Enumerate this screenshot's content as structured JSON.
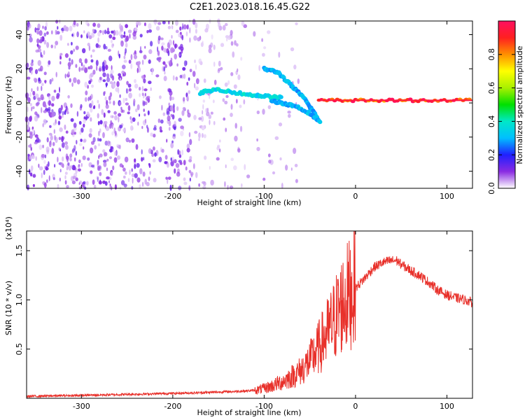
{
  "title": "C2E1.2023.018.16.45.G22",
  "chart_data": [
    {
      "type": "heatmap",
      "xlabel": "Height of straight line (km)",
      "ylabel": "Frequency (Hz)",
      "xlim": [
        -360,
        128
      ],
      "ylim": [
        -50,
        48
      ],
      "x_ticks": [
        -300,
        -200,
        -100,
        0,
        100
      ],
      "y_ticks": [
        40,
        20,
        0,
        -20,
        -40
      ],
      "colorbar": {
        "label": "Normalized spectral amplitude",
        "range": [
          0,
          1
        ],
        "ticks": [
          "0.0",
          "0.2",
          "0.4",
          "0.6",
          "0.8"
        ]
      },
      "features": [
        {
          "x": [
            -170,
            -150,
            -120,
            -100,
            -80
          ],
          "y": [
            6,
            8,
            5,
            4,
            3
          ],
          "amplitude": 0.35
        },
        {
          "x": [
            -100,
            -85,
            -70,
            -55,
            -40
          ],
          "y": [
            20,
            18,
            10,
            2,
            -10
          ],
          "amplitude": 0.3
        },
        {
          "x": [
            -92,
            -80,
            -65,
            -50,
            -38
          ],
          "y": [
            1,
            0,
            -2,
            -6,
            -12
          ],
          "amplitude": 0.3
        },
        {
          "x": [
            -40,
            0,
            40,
            80,
            128
          ],
          "y": [
            1.5,
            1.5,
            1.5,
            1.5,
            1.5
          ],
          "amplitude": 0.9
        }
      ]
    },
    {
      "type": "line",
      "xlabel": "Height of straight line (km)",
      "ylabel": "SNR (10 * v/v)",
      "scale_label": "(x10⁴)",
      "xlim": [
        -360,
        128
      ],
      "ylim": [
        0,
        1.7
      ],
      "x_ticks": [
        -300,
        -200,
        -100,
        0,
        100
      ],
      "y_ticks": [
        "0.5",
        "1.0",
        "1.5"
      ],
      "color": "#e8302a",
      "series": [
        {
          "x": [
            -360,
            -300,
            -250,
            -200,
            -160,
            -130,
            -110,
            -100,
            -90,
            -80,
            -70,
            -60,
            -55,
            -50,
            -45,
            -40,
            -35,
            -30,
            -25,
            -20,
            -15,
            -10,
            -5,
            0,
            10,
            20,
            30,
            40,
            45,
            50,
            60,
            70,
            80,
            90,
            100,
            110,
            120,
            128
          ],
          "y": [
            0.02,
            0.03,
            0.04,
            0.05,
            0.06,
            0.07,
            0.08,
            0.1,
            0.13,
            0.17,
            0.22,
            0.28,
            0.33,
            0.38,
            0.45,
            0.52,
            0.6,
            0.68,
            0.76,
            0.86,
            0.95,
            1.02,
            1.08,
            1.12,
            1.22,
            1.33,
            1.38,
            1.4,
            1.4,
            1.36,
            1.3,
            1.25,
            1.18,
            1.1,
            1.05,
            1.02,
            1.0,
            0.97
          ]
        }
      ]
    }
  ]
}
